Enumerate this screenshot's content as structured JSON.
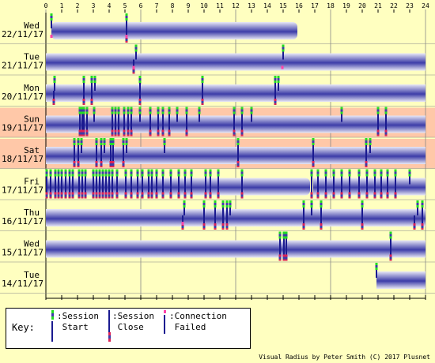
{
  "hours": [
    "0",
    "1",
    "2",
    "3",
    "4",
    "5",
    "6",
    "7",
    "8",
    "9",
    "10",
    "11",
    "12",
    "13",
    "14",
    "15",
    "16",
    "17",
    "18",
    "19",
    "20",
    "21",
    "22",
    "23",
    "24"
  ],
  "days": [
    {
      "dow": "Wed",
      "date": "22/11/17",
      "weekend": false,
      "sessions": [
        [
          0.35,
          15.9
        ]
      ],
      "starts": [
        0.35,
        5.1
      ],
      "ends": [
        5.1
      ],
      "fails": [
        0.35,
        5.1
      ]
    },
    {
      "dow": "Tue",
      "date": "21/11/17",
      "weekend": false,
      "sessions": [
        [
          0,
          24
        ]
      ],
      "starts": [
        5.7,
        15.0
      ],
      "ends": [
        5.55
      ],
      "fails": [
        5.55,
        14.95
      ]
    },
    {
      "dow": "Mon",
      "date": "20/11/17",
      "weekend": false,
      "sessions": [
        [
          0,
          24
        ]
      ],
      "starts": [
        0.55,
        2.4,
        2.9,
        3.1,
        5.95,
        9.9,
        14.5,
        14.7
      ],
      "ends": [
        0.5,
        2.4,
        2.9,
        5.95,
        9.9,
        14.5
      ],
      "fails": []
    },
    {
      "dow": "Sun",
      "date": "19/11/17",
      "weekend": true,
      "sessions": [
        [
          0,
          24
        ]
      ],
      "starts": [
        2.15,
        2.3,
        2.4,
        2.6,
        3.05,
        4.2,
        4.4,
        4.6,
        4.95,
        5.2,
        5.4,
        5.95,
        6.6,
        7.1,
        7.4,
        7.8,
        8.3,
        8.9,
        9.7,
        11.9,
        12.4,
        13.0,
        18.7,
        21.0,
        21.5
      ],
      "ends": [
        2.15,
        2.3,
        2.4,
        2.6,
        4.2,
        4.4,
        4.6,
        4.95,
        5.2,
        5.4,
        6.6,
        7.1,
        7.4,
        7.8,
        8.9,
        11.9,
        12.4,
        21.0,
        21.5
      ],
      "fails": []
    },
    {
      "dow": "Sat",
      "date": "18/11/17",
      "weekend": true,
      "sessions": [
        [
          0,
          24
        ]
      ],
      "starts": [
        1.8,
        2.05,
        2.25,
        3.2,
        3.5,
        3.7,
        4.1,
        4.25,
        4.9,
        5.1,
        7.5,
        12.15,
        16.9,
        20.25,
        20.5
      ],
      "ends": [
        1.8,
        2.05,
        3.2,
        3.5,
        4.1,
        4.25,
        4.9,
        12.15,
        16.9,
        20.25
      ],
      "fails": []
    },
    {
      "dow": "Fri",
      "date": "17/11/17",
      "weekend": false,
      "sessions": [
        [
          0,
          16.7
        ],
        [
          16.9,
          24
        ]
      ],
      "starts": [
        0.05,
        0.3,
        0.6,
        0.8,
        1.0,
        1.25,
        1.5,
        1.7,
        2.1,
        2.3,
        2.5,
        3.0,
        3.2,
        3.4,
        3.6,
        3.8,
        4.0,
        4.2,
        4.5,
        5.05,
        5.4,
        5.8,
        6.1,
        6.5,
        6.7,
        7.0,
        7.4,
        7.9,
        8.4,
        8.8,
        9.2,
        10.1,
        10.4,
        10.9,
        12.4,
        16.8,
        17.2,
        17.7,
        18.2,
        18.7,
        19.2,
        19.8,
        20.3,
        20.8,
        21.2,
        21.6,
        22.1,
        23.0
      ],
      "ends": [
        0.05,
        0.3,
        0.6,
        0.8,
        1.0,
        1.25,
        1.5,
        1.7,
        2.1,
        2.3,
        2.5,
        3.0,
        3.2,
        3.4,
        3.6,
        3.8,
        4.0,
        4.2,
        4.5,
        5.05,
        5.4,
        5.8,
        6.1,
        6.5,
        6.7,
        7.0,
        7.4,
        7.9,
        8.4,
        8.8,
        9.2,
        10.1,
        10.4,
        10.9,
        12.4,
        16.8,
        17.2,
        17.7,
        18.2,
        18.7,
        19.2,
        19.8,
        20.3,
        20.8,
        21.2,
        21.6,
        22.1
      ],
      "fails": []
    },
    {
      "dow": "Thu",
      "date": "16/11/17",
      "weekend": false,
      "sessions": [
        [
          0,
          24
        ]
      ],
      "starts": [
        8.75,
        10.0,
        10.7,
        11.2,
        11.45,
        11.65,
        16.3,
        16.8,
        17.4,
        20.0,
        23.5,
        23.8
      ],
      "ends": [
        8.65,
        10.0,
        10.7,
        11.2,
        11.45,
        16.3,
        17.4,
        20.0,
        23.3,
        23.8
      ],
      "fails": [
        8.65
      ]
    },
    {
      "dow": "Wed",
      "date": "15/11/17",
      "weekend": false,
      "sessions": [
        [
          0,
          24
        ]
      ],
      "starts": [
        14.8,
        15.05,
        15.2,
        21.8
      ],
      "ends": [
        14.8,
        15.05,
        15.2,
        21.8
      ],
      "fails": []
    },
    {
      "dow": "Tue",
      "date": "14/11/17",
      "weekend": false,
      "sessions": [
        [
          20.9,
          24
        ]
      ],
      "starts": [
        20.9
      ],
      "ends": [],
      "fails": []
    }
  ],
  "key": {
    "title": "Key:",
    "session_start": ":Session\n Start",
    "session_close": ":Session\n Close",
    "connection_failed": ":Connection\n Failed"
  },
  "credit": "Visual Radius by Peter Smith (C) 2017 Plusnet",
  "colors": {
    "background": "#ffffc0",
    "weekend": "#ffc8a8",
    "grid": "#888888",
    "session_dark": "#3c3ca8",
    "session_light": "#e8e8f6",
    "start_green": "#22dd22",
    "end_red": "#dd2255",
    "fail_pink": "#ff44aa"
  }
}
